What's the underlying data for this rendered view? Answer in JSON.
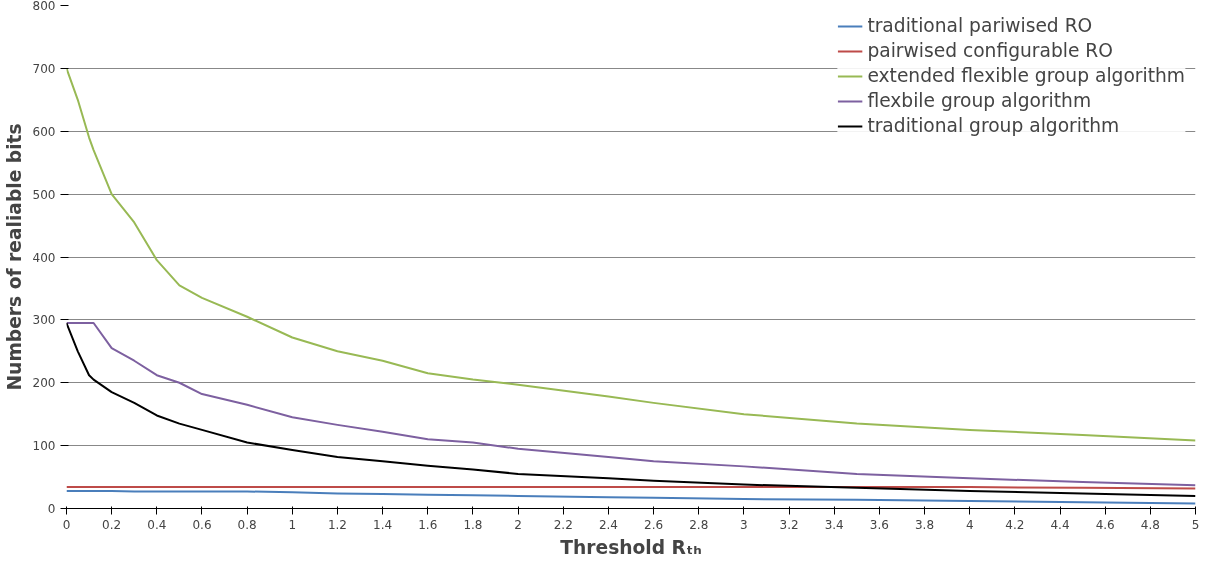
{
  "chart_data": {
    "type": "line",
    "xlabel": "Threshold Rₜₕ",
    "ylabel": "Numbers of realiable bits",
    "xlim": [
      0,
      5
    ],
    "ylim": [
      0,
      800
    ],
    "xticks": [
      0,
      0.2,
      0.4,
      0.6,
      0.8,
      1,
      1.2,
      1.4,
      1.6,
      1.8,
      2,
      2.2,
      2.4,
      2.6,
      2.8,
      3,
      3.2,
      3.4,
      3.6,
      3.8,
      4,
      4.2,
      4.4,
      4.6,
      4.8,
      5
    ],
    "yticks": [
      0,
      100,
      200,
      300,
      400,
      500,
      600,
      700,
      800
    ],
    "grid": "y",
    "legend": "top right",
    "line_style": "solid",
    "marker": "none",
    "x": [
      0,
      0.05,
      0.1,
      0.12,
      0.2,
      0.3,
      0.4,
      0.5,
      0.6,
      0.8,
      1,
      1.2,
      1.4,
      1.6,
      1.8,
      2,
      2.4,
      2.6,
      3,
      3.5,
      4,
      4.5,
      5
    ],
    "series": [
      {
        "name": "traditional pariwised RO",
        "color": "#4a7ebb",
        "values": [
          28,
          28,
          28,
          28,
          28,
          27,
          27,
          27,
          27,
          27,
          26,
          24,
          23,
          22,
          21,
          20,
          18,
          17,
          15,
          14,
          12,
          10,
          8
        ]
      },
      {
        "name": "pairwised configurable RO",
        "color": "#be4b48",
        "values": [
          34,
          34,
          34,
          34,
          34,
          34,
          34,
          34,
          34,
          34,
          34,
          34,
          34,
          34,
          34,
          34,
          34,
          34,
          34,
          34,
          34,
          33,
          32
        ]
      },
      {
        "name": "extended flexible group algorithm",
        "color": "#98b954",
        "values": [
          700,
          650,
          590,
          570,
          500,
          455,
          395,
          355,
          335,
          305,
          272,
          250,
          235,
          215,
          205,
          197,
          178,
          168,
          150,
          135,
          125,
          117,
          108
        ]
      },
      {
        "name": "flexbile group algorithm",
        "color": "#7d60a0",
        "values": [
          295,
          295,
          295,
          295,
          255,
          235,
          212,
          200,
          182,
          165,
          145,
          133,
          122,
          110,
          105,
          95,
          82,
          75,
          67,
          55,
          48,
          42,
          37
        ]
      },
      {
        "name": "traditional group algorithm",
        "color": "#000000",
        "values": [
          295,
          250,
          212,
          205,
          185,
          168,
          148,
          135,
          125,
          105,
          93,
          82,
          75,
          68,
          62,
          55,
          48,
          44,
          38,
          33,
          28,
          24,
          20
        ]
      }
    ]
  }
}
